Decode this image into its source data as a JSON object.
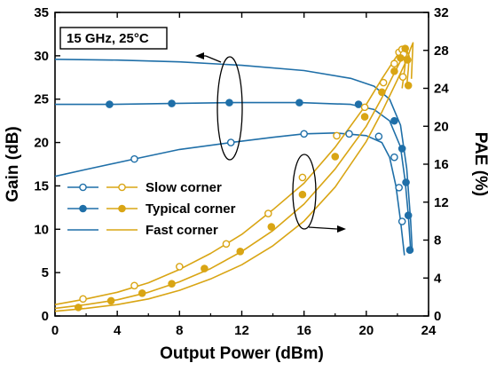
{
  "chart_data": {
    "type": "line",
    "annotation": "15 GHz, 25°C",
    "x_axis": {
      "label": "Output Power (dBm)",
      "range": [
        0,
        24
      ],
      "ticks": [
        0,
        4,
        8,
        12,
        16,
        20,
        24
      ]
    },
    "y_left": {
      "label": "Gain (dB)",
      "range": [
        0,
        35
      ],
      "ticks": [
        0,
        5,
        10,
        15,
        20,
        25,
        30,
        35
      ]
    },
    "y_right": {
      "label": "PAE (%)",
      "range": [
        0,
        32
      ],
      "ticks": [
        0,
        4,
        8,
        12,
        16,
        20,
        24,
        28,
        32
      ]
    },
    "colors": {
      "gain": "#1f6fa8",
      "pae": "#d9a514"
    },
    "legend": {
      "placement": "center-left",
      "entries": [
        {
          "label": "Slow corner",
          "marker": "open-circle"
        },
        {
          "label": "Typical corner",
          "marker": "filled-circle"
        },
        {
          "label": "Fast corner",
          "marker": "line"
        }
      ]
    },
    "series": [
      {
        "corner": "Slow corner",
        "metric": "Gain",
        "axis": "left",
        "marker": "open-circle",
        "x": [
          0,
          2,
          5.1,
          8,
          11.3,
          14,
          16,
          18,
          20,
          21,
          21.5,
          21.9,
          22.2,
          22.45
        ],
        "y": [
          16.1,
          16.9,
          18.1,
          19.2,
          20.0,
          20.6,
          21.0,
          21.1,
          20.8,
          20.0,
          18.3,
          15.0,
          11.0,
          7.0
        ],
        "markers_x": [
          5.1,
          11.3,
          16,
          18.9,
          20.8,
          21.8,
          22.1,
          22.3
        ],
        "markers_y": [
          18.1,
          20.0,
          21.0,
          21.0,
          20.7,
          18.3,
          14.8,
          10.9
        ]
      },
      {
        "corner": "Typical corner",
        "metric": "Gain",
        "axis": "left",
        "marker": "filled-circle",
        "x": [
          0,
          3.5,
          7.5,
          11.2,
          15.7,
          19,
          20.5,
          21.5,
          22.2,
          22.5,
          22.7,
          22.85
        ],
        "y": [
          24.4,
          24.4,
          24.5,
          24.6,
          24.6,
          24.4,
          23.8,
          22.5,
          19.5,
          15.5,
          11.6,
          7.6
        ],
        "markers_x": [
          3.5,
          7.5,
          11.2,
          15.7,
          19.5,
          21.8,
          22.3,
          22.55,
          22.7,
          22.8
        ],
        "markers_y": [
          24.4,
          24.5,
          24.6,
          24.6,
          24.4,
          22.5,
          19.3,
          15.4,
          11.6,
          7.6
        ]
      },
      {
        "corner": "Fast corner",
        "metric": "Gain",
        "axis": "left",
        "marker": "none",
        "x": [
          0,
          4,
          8,
          12,
          16,
          19,
          20.5,
          21.5,
          22.2,
          22.6,
          22.85,
          22.95
        ],
        "y": [
          29.6,
          29.5,
          29.3,
          28.9,
          28.3,
          27.4,
          26.5,
          25.0,
          22.0,
          17.0,
          11.0,
          7.5
        ]
      },
      {
        "corner": "Slow corner",
        "metric": "PAE",
        "axis": "right",
        "marker": "open-circle",
        "x": [
          0,
          2,
          4,
          6,
          8,
          10,
          12,
          14,
          16,
          18,
          20,
          21,
          21.8,
          22.2,
          22.4,
          22.5,
          22.4,
          22.3
        ],
        "y": [
          1.2,
          1.8,
          2.5,
          3.5,
          4.9,
          6.6,
          8.6,
          11.2,
          14.0,
          17.8,
          22.3,
          25.0,
          27.0,
          28.0,
          27.5,
          26.5,
          25.2,
          24.0
        ],
        "markers_x": [
          1.8,
          5.1,
          8,
          11,
          13.7,
          15.9,
          18.1,
          19.9,
          21.1,
          21.8,
          22.1,
          22.3,
          22.4,
          22.35
        ],
        "markers_y": [
          1.8,
          3.2,
          5.2,
          7.6,
          10.8,
          14.6,
          19.0,
          22.0,
          24.6,
          26.6,
          27.8,
          28.1,
          27.6,
          25.2
        ]
      },
      {
        "corner": "Typical corner",
        "metric": "PAE",
        "axis": "right",
        "marker": "filled-circle",
        "x": [
          0,
          2,
          4,
          6,
          8,
          10,
          12,
          14,
          16,
          18,
          20,
          21,
          21.8,
          22.3,
          22.6,
          22.75,
          22.7,
          22.6
        ],
        "y": [
          0.8,
          1.2,
          1.7,
          2.5,
          3.6,
          5.0,
          6.8,
          9.0,
          11.8,
          15.5,
          20.0,
          23.0,
          25.6,
          27.2,
          28.0,
          27.4,
          26.0,
          24.2
        ],
        "markers_x": [
          1.5,
          3.6,
          5.6,
          7.5,
          9.6,
          11.9,
          13.9,
          15.9,
          18.0,
          19.9,
          21.0,
          21.8,
          22.2,
          22.5,
          22.65,
          22.7
        ],
        "markers_y": [
          0.9,
          1.6,
          2.4,
          3.4,
          5.0,
          6.8,
          9.4,
          12.8,
          16.8,
          21.0,
          23.6,
          25.8,
          27.2,
          28.2,
          27.0,
          24.3
        ]
      },
      {
        "corner": "Fast corner",
        "metric": "PAE",
        "axis": "right",
        "marker": "none",
        "x": [
          0,
          2,
          4,
          6,
          8,
          10,
          12,
          14,
          16,
          18,
          20,
          21,
          22,
          22.6,
          22.85,
          23.0,
          22.95,
          22.9
        ],
        "y": [
          0.5,
          0.8,
          1.2,
          1.8,
          2.7,
          3.9,
          5.4,
          7.4,
          10.0,
          13.6,
          18.4,
          21.5,
          24.9,
          27.0,
          28.2,
          28.8,
          27.0,
          25.0
        ]
      }
    ]
  }
}
